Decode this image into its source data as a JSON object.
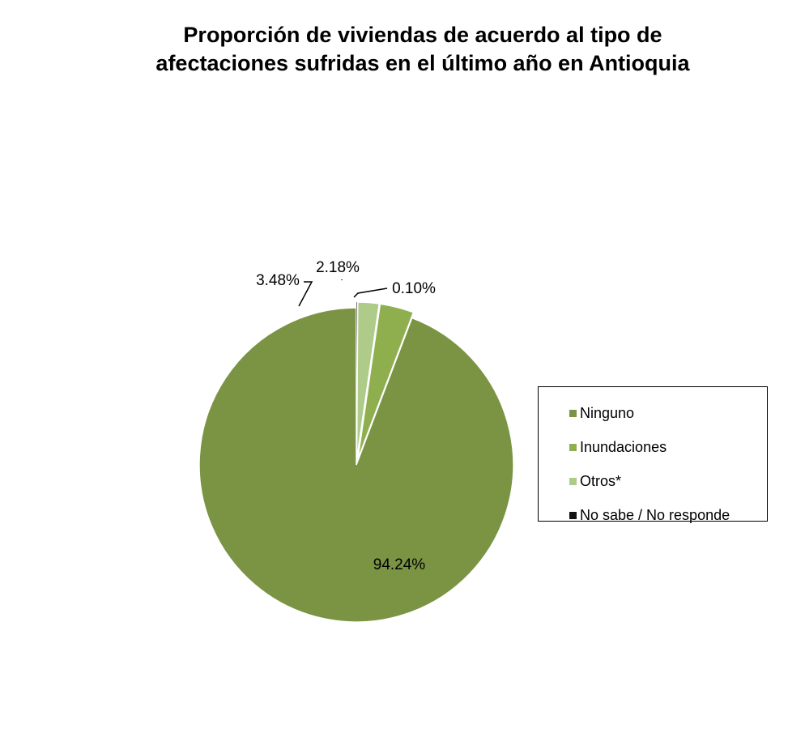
{
  "chart_data": {
    "type": "pie",
    "title_lines": [
      "Proporción de viviendas de acuerdo al tipo de",
      "afectaciones sufridas en el último año  en Antioquia"
    ],
    "slices": [
      {
        "name": "Ninguno",
        "value": 94.24,
        "label": "94.24%",
        "color": "#7A9444",
        "exploded": false
      },
      {
        "name": "Inundaciones",
        "value": 3.48,
        "label": "3.48%",
        "color": "#8FAF4F",
        "exploded": true
      },
      {
        "name": "Otros*",
        "value": 2.18,
        "label": "2.18%",
        "color": "#AECB8A",
        "exploded": true
      },
      {
        "name": "No sabe / No responde",
        "value": 0.1,
        "label": "0.10%",
        "color": "#111111",
        "exploded": true
      }
    ],
    "start_angle": "12 o'clock",
    "direction": "counterclockwise",
    "legend_position": "right"
  }
}
